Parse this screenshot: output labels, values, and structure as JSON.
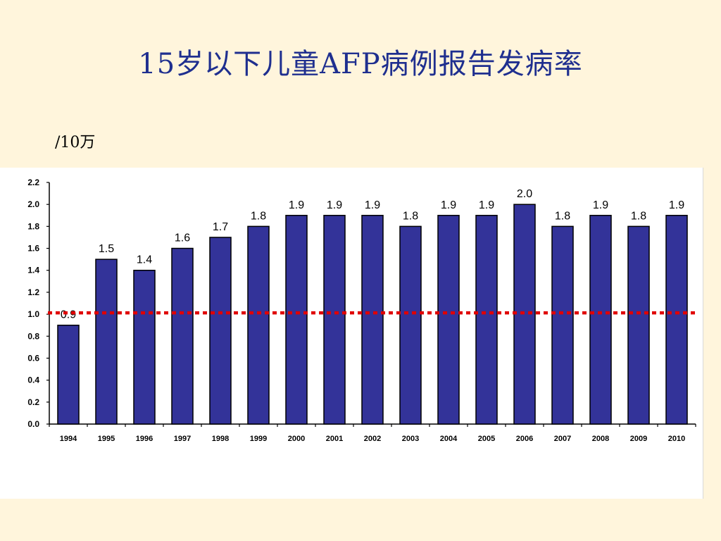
{
  "slide": {
    "title": "15岁以下儿童AFP病例报告发病率",
    "unit": "/10万"
  },
  "colors": {
    "background": "#fff5dc",
    "title": "#1f2f8f",
    "bar_fill": "#333399",
    "bar_stroke": "#000000",
    "reference_line": "#e00000"
  },
  "chart_data": {
    "type": "bar",
    "title": "",
    "xlabel": "",
    "ylabel": "",
    "categories": [
      "1994",
      "1995",
      "1996",
      "1997",
      "1998",
      "1999",
      "2000",
      "2001",
      "2002",
      "2003",
      "2004",
      "2005",
      "2006",
      "2007",
      "2008",
      "2009",
      "2010"
    ],
    "values": [
      0.9,
      1.5,
      1.4,
      1.6,
      1.7,
      1.8,
      1.9,
      1.9,
      1.9,
      1.8,
      1.9,
      1.9,
      2.0,
      1.8,
      1.9,
      1.8,
      1.9
    ],
    "data_labels": [
      "0.9",
      "1.5",
      "1.4",
      "1.6",
      "1.7",
      "1.8",
      "1.9",
      "1.9",
      "1.9",
      "1.8",
      "1.9",
      "1.9",
      "2.0",
      "1.8",
      "1.9",
      "1.8",
      "1.9"
    ],
    "ylim": [
      0,
      2.2
    ],
    "yticks": [
      "0.0",
      "0.2",
      "0.4",
      "0.6",
      "0.8",
      "1.0",
      "1.2",
      "1.4",
      "1.6",
      "1.8",
      "2.0",
      "2.2"
    ],
    "reference_line": {
      "value": 1.0,
      "style": "dotted"
    },
    "grid": false,
    "legend": "none"
  }
}
